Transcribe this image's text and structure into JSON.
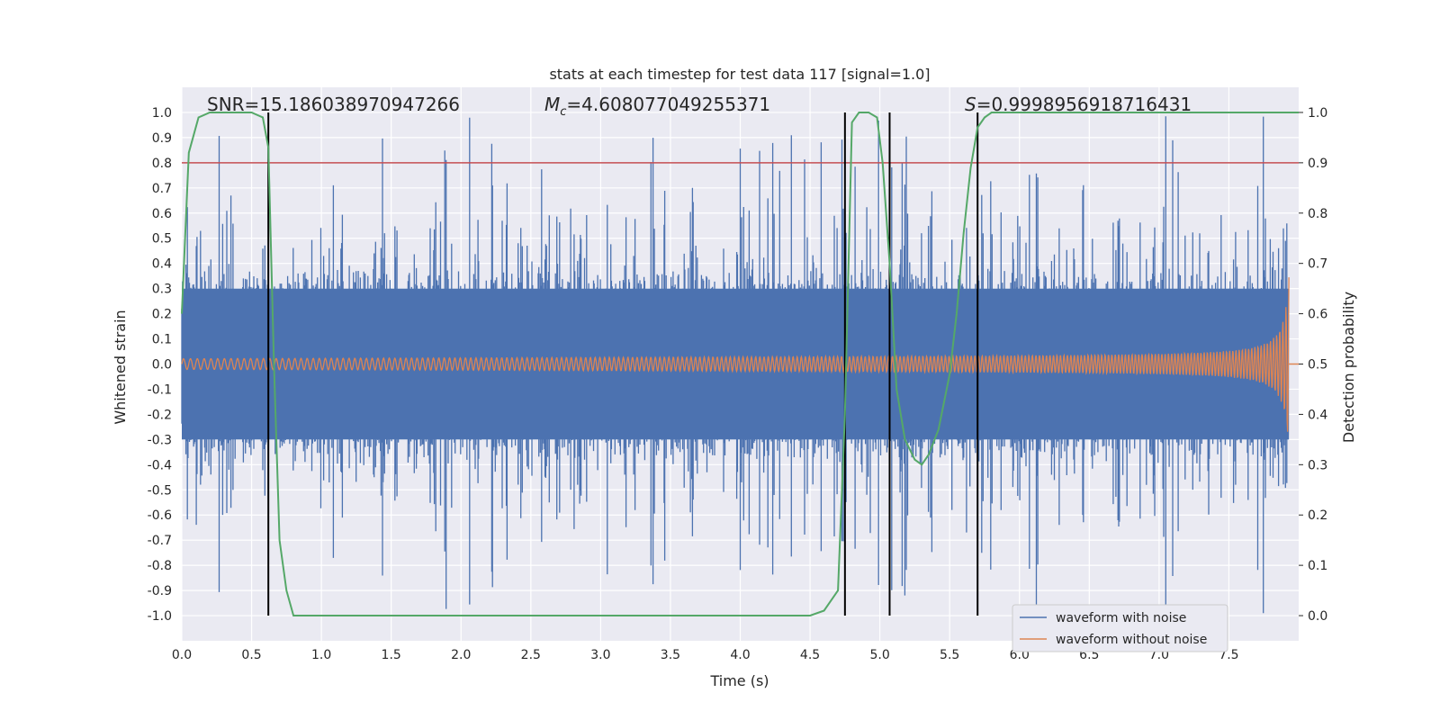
{
  "chart_data": {
    "type": "line",
    "title": "stats at each timestep for test data 117 [signal=1.0]",
    "xlabel": "Time (s)",
    "ylabel_left": "Whitened strain",
    "ylabel_right": "Detection probability",
    "xlim": [
      0.0,
      8.0
    ],
    "ylim_left": [
      -1.1,
      1.1
    ],
    "ylim_right": [
      -0.05,
      1.05
    ],
    "x_ticks": [
      "0.0",
      "0.5",
      "1.0",
      "1.5",
      "2.0",
      "2.5",
      "3.0",
      "3.5",
      "4.0",
      "4.5",
      "5.0",
      "5.5",
      "6.0",
      "6.5",
      "7.0",
      "7.5"
    ],
    "y_left_ticks": [
      "1.0",
      "0.9",
      "0.8",
      "0.7",
      "0.6",
      "0.5",
      "0.4",
      "0.3",
      "0.2",
      "0.1",
      "0.0",
      "-0.1",
      "-0.2",
      "-0.3",
      "-0.4",
      "-0.5",
      "-0.6",
      "-0.7",
      "-0.8",
      "-0.9",
      "-1.0"
    ],
    "y_right_ticks": [
      "1.0",
      "0.9",
      "0.8",
      "0.7",
      "0.6",
      "0.5",
      "0.4",
      "0.3",
      "0.2",
      "0.1",
      "0.0"
    ],
    "grid": true,
    "legend_position": "bottom-right",
    "annotations": {
      "snr_text": "SNR=15.186038970947266",
      "mc_label": "M",
      "mc_sub": "c",
      "mc_value": "=4.608077049255371",
      "s_label": "S",
      "s_value": "=0.9998956918716431"
    },
    "series": [
      {
        "name": "waveform with noise",
        "color": "#4c72b0",
        "axis": "left",
        "envelope": "noise band about ±0.35 with spikes reaching ±1.0"
      },
      {
        "name": "waveform without noise",
        "color": "#dd8452",
        "axis": "left",
        "envelope": "chirp amplitude 0.02 rising to 0.38 near 7.9 s"
      },
      {
        "name": "detection probability",
        "color": "#55a868",
        "axis": "right",
        "x": [
          0.0,
          0.05,
          0.12,
          0.2,
          0.3,
          0.4,
          0.5,
          0.58,
          0.62,
          0.66,
          0.7,
          0.75,
          0.8,
          1.0,
          1.5,
          2.0,
          2.5,
          3.0,
          3.5,
          4.0,
          4.5,
          4.6,
          4.7,
          4.75,
          4.8,
          4.85,
          4.92,
          4.98,
          5.02,
          5.07,
          5.12,
          5.18,
          5.25,
          5.3,
          5.35,
          5.42,
          5.5,
          5.55,
          5.6,
          5.65,
          5.7,
          5.75,
          5.8,
          6.0,
          6.5,
          7.0,
          7.5,
          8.0
        ],
        "values": [
          0.6,
          0.92,
          0.99,
          1.0,
          1.0,
          1.0,
          1.0,
          0.99,
          0.93,
          0.5,
          0.15,
          0.05,
          0.0,
          0.0,
          0.0,
          0.0,
          0.0,
          0.0,
          0.0,
          0.0,
          0.0,
          0.01,
          0.05,
          0.4,
          0.98,
          1.0,
          1.0,
          0.99,
          0.9,
          0.7,
          0.45,
          0.35,
          0.31,
          0.3,
          0.32,
          0.37,
          0.48,
          0.6,
          0.76,
          0.89,
          0.97,
          0.99,
          1.0,
          1.0,
          1.0,
          1.0,
          1.0,
          1.0
        ]
      }
    ],
    "threshold_line": {
      "value": 0.8,
      "axis": "left",
      "color": "#c44e52"
    },
    "vertical_lines": [
      0.62,
      4.75,
      5.07,
      5.7
    ],
    "vertical_line_range": [
      -1.0,
      1.0
    ],
    "legend": {
      "items": [
        {
          "label": "waveform with noise",
          "color": "#4c72b0"
        },
        {
          "label": "waveform without noise",
          "color": "#dd8452"
        }
      ]
    }
  }
}
